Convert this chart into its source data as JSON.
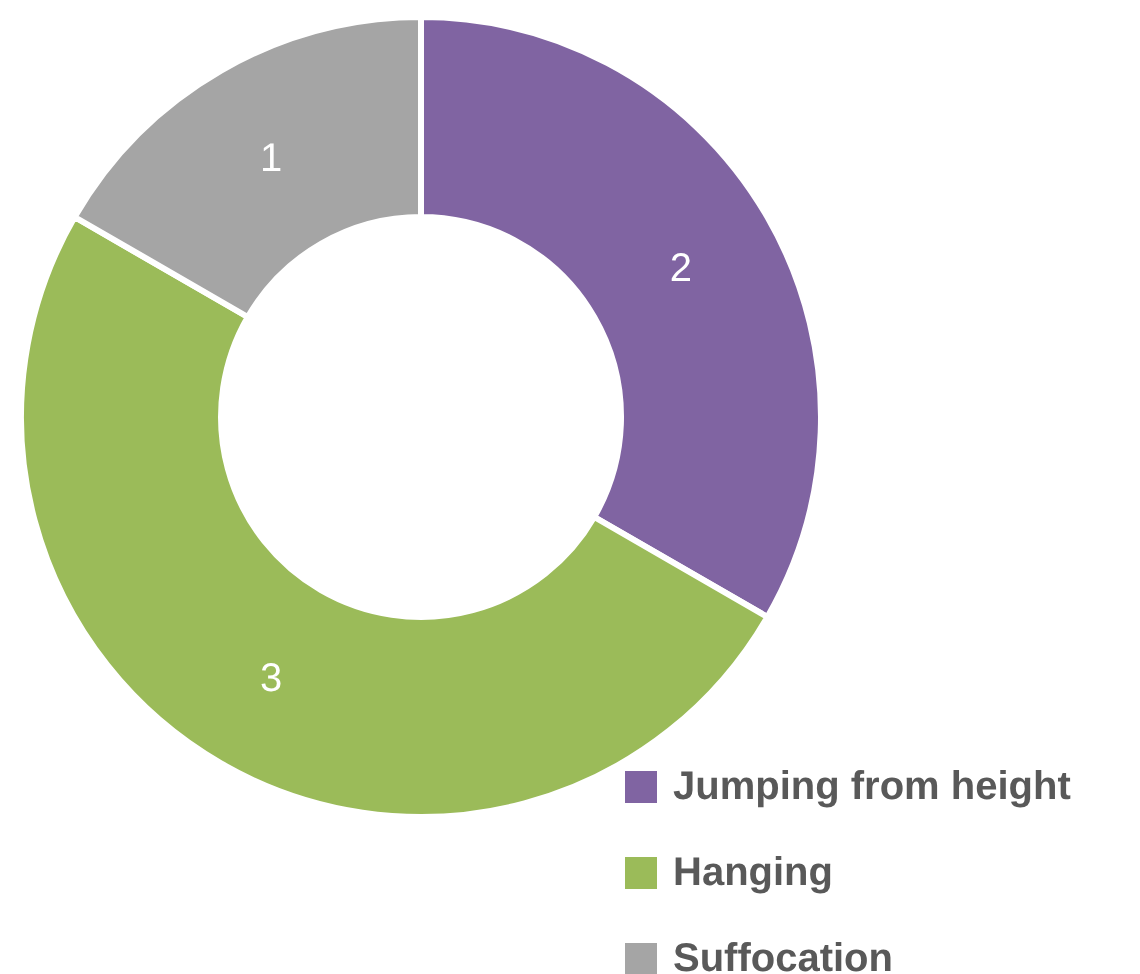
{
  "chart_data": {
    "type": "donut",
    "categories": [
      "Jumping from height",
      "Hanging",
      "Suffocation"
    ],
    "values": [
      2,
      3,
      1
    ],
    "colors": [
      "#8064a2",
      "#9bbb59",
      "#a5a5a5"
    ],
    "data_labels": true,
    "legend": "bottom right"
  }
}
